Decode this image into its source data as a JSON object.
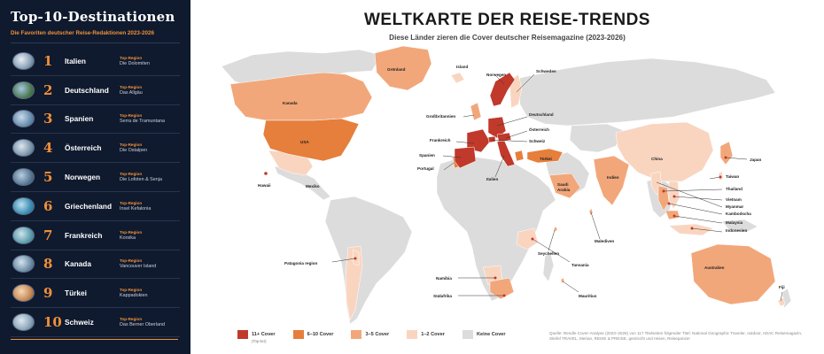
{
  "sidebar": {
    "title": "Top-10-Destinationen",
    "subtitle": "Die Favoriten deutscher Reise-Redaktionen 2023-2026",
    "destinations": [
      {
        "rank": "1",
        "country": "Italien",
        "region_tag": "Top-Region",
        "region": "Die Dolomiten"
      },
      {
        "rank": "2",
        "country": "Deutschland",
        "region_tag": "Top-Region",
        "region": "Das Allgäu"
      },
      {
        "rank": "3",
        "country": "Spanien",
        "region_tag": "Top-Region",
        "region": "Serra de Tramuntana"
      },
      {
        "rank": "4",
        "country": "Österreich",
        "region_tag": "Top-Region",
        "region": "Die Ostalpen"
      },
      {
        "rank": "5",
        "country": "Norwegen",
        "region_tag": "Top-Region",
        "region": "Die Lofoten & Senja"
      },
      {
        "rank": "6",
        "country": "Griechenland",
        "region_tag": "Top-Region",
        "region": "Insel Kefalonia"
      },
      {
        "rank": "7",
        "country": "Frankreich",
        "region_tag": "Top-Region",
        "region": "Korsika"
      },
      {
        "rank": "8",
        "country": "Kanada",
        "region_tag": "Top-Region",
        "region": "Vancouver Island"
      },
      {
        "rank": "9",
        "country": "Türkei",
        "region_tag": "Top-Region",
        "region": "Kappadokien"
      },
      {
        "rank": "10",
        "country": "Schweiz",
        "region_tag": "Top-Region",
        "region": "Das Berner Oberland"
      }
    ]
  },
  "main": {
    "title": "WELTKARTE DER REISE-TRENDS",
    "subtitle": "Diese Länder zieren die Cover deutscher Reisemagazine (2023-2026)"
  },
  "map_labels": {
    "groenland": "Grönland",
    "island": "Island",
    "norwegen": "Norwegen",
    "schweden": "Schweden",
    "kanada": "Kanada",
    "usa": "USA",
    "hawaii": "Hawaii",
    "mexiko": "Mexiko",
    "grossbritannien": "Großbritannien",
    "deutschland": "Deutschland",
    "oesterreich": "Österreich",
    "frankreich": "Frankreich",
    "schweiz": "Schweiz",
    "spanien": "Spanien",
    "portugal": "Portugal",
    "italien": "Italien",
    "tuerkei": "Türkei",
    "china": "China",
    "japan": "Japan",
    "saudi": "Saudi\nArabia",
    "saudi_1": "Saudi",
    "saudi_2": "Arabia",
    "indien": "Indien",
    "taiwan": "Taiwan",
    "thailand": "Thailand",
    "vietnam": "Vietnam",
    "myanmar": "Myanmar",
    "kambodscha": "Kambodscha",
    "malaysia": "Malaysia",
    "indonesien": "Indonesien",
    "malediven": "Malediven",
    "seychellen": "Seychellen",
    "tansania": "Tansania",
    "namibia": "Namibia",
    "suedafrika": "Südafrika",
    "mauritius": "Mauritius",
    "australien": "Australien",
    "fiji": "Fiji",
    "patagonia": "Patagonia region"
  },
  "legend": [
    {
      "label": "11+ Cover",
      "sub": "(Top tier)",
      "color": "#c0392b"
    },
    {
      "label": "6–10 Cover",
      "sub": "",
      "color": "#e67e3c"
    },
    {
      "label": "3–5 Cover",
      "sub": "",
      "color": "#f2a77a"
    },
    {
      "label": "1–2 Cover",
      "sub": "",
      "color": "#f9d5c0"
    },
    {
      "label": "Keine Cover",
      "sub": "",
      "color": "#dcdcdc"
    }
  ],
  "source_note": "Quelle: Rendle Cover-Analyse (2023–2026) von 117 Titelseiten folgender Titel: National Geographic Traveler, outdoor, ADAC Reisemagazin, Stiefel TRAVEL, Merian, REISE & PREISE, gemischt und reisen, Reisepanzer",
  "colors": {
    "tier1": "#c0392b",
    "tier2": "#e67e3c",
    "tier3": "#f2a77a",
    "tier4": "#f9d5c0",
    "none": "#dcdcdc",
    "sidebar_bg": "#0f1a2e",
    "accent": "#f0903a"
  }
}
